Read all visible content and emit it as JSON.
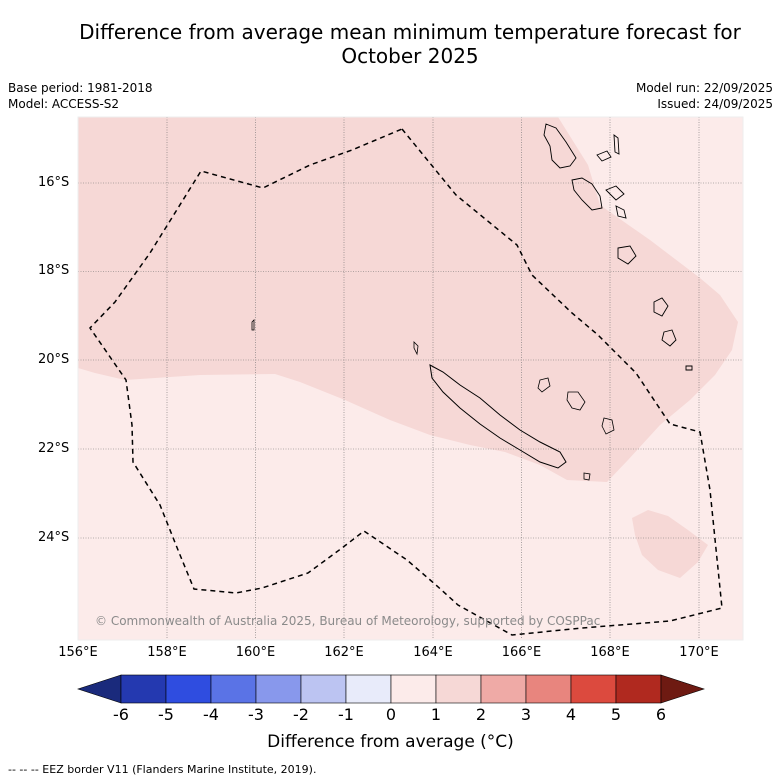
{
  "title": {
    "line1": "Difference from average mean minimum temperature forecast for",
    "line2": "October 2025"
  },
  "meta": {
    "base_period": "Base period: 1981-2018",
    "model": "Model: ACCESS-S2",
    "model_run": "Model run: 22/09/2025",
    "issued": "Issued: 24/09/2025"
  },
  "map": {
    "lon_range": [
      156,
      171
    ],
    "lat_range": [
      -14.5,
      -26.3
    ],
    "lat_labels": [
      {
        "label": "16°S",
        "lat": -16
      },
      {
        "label": "18°S",
        "lat": -18
      },
      {
        "label": "20°S",
        "lat": -20
      },
      {
        "label": "22°S",
        "lat": -22
      },
      {
        "label": "24°S",
        "lat": -24
      }
    ],
    "lon_labels": [
      {
        "label": "156°E",
        "lon": 156
      },
      {
        "label": "158°E",
        "lon": 158
      },
      {
        "label": "160°E",
        "lon": 160
      },
      {
        "label": "162°E",
        "lon": 162
      },
      {
        "label": "164°E",
        "lon": 164
      },
      {
        "label": "166°E",
        "lon": 166
      },
      {
        "label": "168°E",
        "lon": 168
      },
      {
        "label": "170°E",
        "lon": 170
      }
    ],
    "region_colors": {
      "anomaly_0_to_1": "#fcebea",
      "anomaly_1_to_2": "#f6d8d6"
    },
    "copyright": "© Commonwealth of Australia 2025, Bureau of Meteorology, supported by COSPPac"
  },
  "colorbar": {
    "ticks": [
      "-6",
      "-5",
      "-4",
      "-3",
      "-2",
      "-1",
      "0",
      "1",
      "2",
      "3",
      "4",
      "5",
      "6"
    ],
    "colors": [
      "#1a2a7c",
      "#2439b0",
      "#2f4de0",
      "#5a73e6",
      "#8898ec",
      "#bcc4f2",
      "#e8ebfa",
      "#fcebea",
      "#f6d8d6",
      "#efaaa6",
      "#e8857e",
      "#dc4a3e",
      "#b0291f",
      "#6e1a12"
    ],
    "label": "Difference from average (°C)"
  },
  "footnote": "--  --  -- EEZ border V11 (Flanders Marine Institute, 2019)."
}
